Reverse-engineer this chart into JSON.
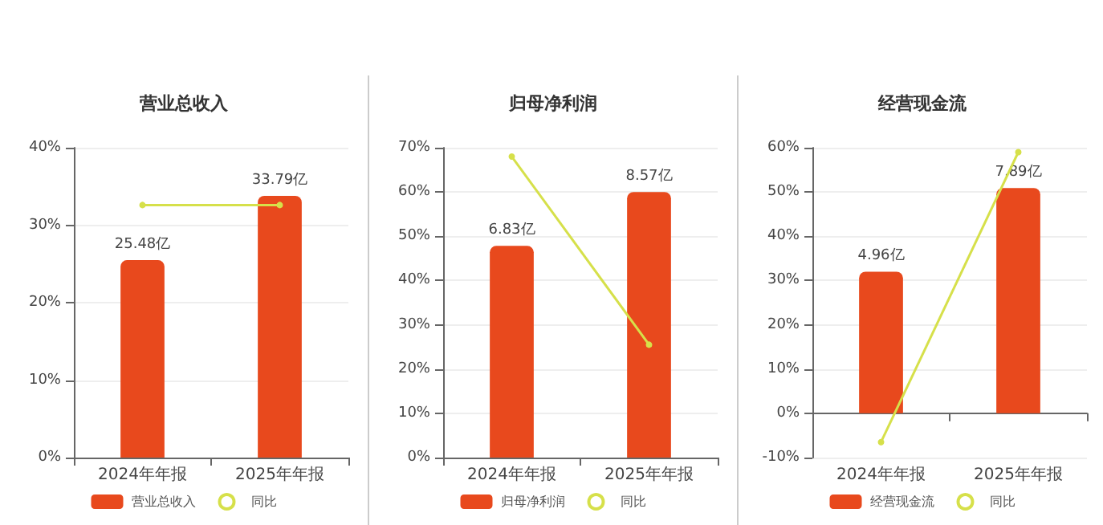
{
  "chart_data": [
    {
      "type": "bar",
      "title": "营业总收入",
      "categories": [
        "2024年年报",
        "2025年年报"
      ],
      "series": [
        {
          "name": "营业总收入",
          "axis": "y2",
          "color": "#e8491d",
          "values": [
            25.48,
            33.79
          ],
          "value_labels": [
            "25.48亿",
            "33.79亿"
          ]
        },
        {
          "name": "同比",
          "type": "line",
          "color": "#d6e04a",
          "values": [
            32.6,
            32.6
          ]
        }
      ],
      "ylim": [
        0,
        40
      ],
      "yticks": [
        {
          "value": 0,
          "label": "0%"
        },
        {
          "value": 10,
          "label": "10%"
        },
        {
          "value": 20,
          "label": "20%"
        },
        {
          "value": 30,
          "label": "30%"
        },
        {
          "value": 40,
          "label": "40%"
        }
      ],
      "y2lim": [
        0,
        40
      ],
      "tick_labels": "xy",
      "grid": "y",
      "legend": "bottom",
      "marker": "circle"
    },
    {
      "type": "bar",
      "title": "归母净利润",
      "categories": [
        "2024年年报",
        "2025年年报"
      ],
      "series": [
        {
          "name": "归母净利润",
          "axis": "y2",
          "color": "#e8491d",
          "values": [
            6.83,
            8.57
          ],
          "value_labels": [
            "6.83亿",
            "8.57亿"
          ]
        },
        {
          "name": "同比",
          "type": "line",
          "color": "#d6e04a",
          "values": [
            68,
            25.5
          ]
        }
      ],
      "ylim": [
        0,
        70
      ],
      "yticks": [
        {
          "value": 0,
          "label": "0%"
        },
        {
          "value": 10,
          "label": "10%"
        },
        {
          "value": 20,
          "label": "20%"
        },
        {
          "value": 30,
          "label": "30%"
        },
        {
          "value": 40,
          "label": "40%"
        },
        {
          "value": 50,
          "label": "50%"
        },
        {
          "value": 60,
          "label": "60%"
        },
        {
          "value": 70,
          "label": "70%"
        }
      ],
      "y2lim": [
        0,
        10
      ],
      "tick_labels": "xy",
      "grid": "y",
      "legend": "bottom",
      "marker": "circle"
    },
    {
      "type": "bar",
      "title": "经营现金流",
      "categories": [
        "2024年年报",
        "2025年年报"
      ],
      "series": [
        {
          "name": "经营现金流",
          "axis": "y2",
          "color": "#e8491d",
          "values": [
            4.96,
            7.89
          ],
          "value_labels": [
            "4.96亿",
            "7.89亿"
          ]
        },
        {
          "name": "同比",
          "type": "line",
          "color": "#d6e04a",
          "values": [
            -6.5,
            59
          ]
        }
      ],
      "ylim": [
        -10,
        60
      ],
      "yticks": [
        {
          "value": -10,
          "label": "-10%"
        },
        {
          "value": 0,
          "label": "0%"
        },
        {
          "value": 10,
          "label": "10%"
        },
        {
          "value": 20,
          "label": "20%"
        },
        {
          "value": 30,
          "label": "30%"
        },
        {
          "value": 40,
          "label": "40%"
        },
        {
          "value": 50,
          "label": "50%"
        },
        {
          "value": 60,
          "label": "60%"
        }
      ],
      "y2lim": [
        -1.55,
        9.3
      ],
      "tick_labels": "xy",
      "grid": "y",
      "legend": "bottom",
      "marker": "circle"
    }
  ]
}
